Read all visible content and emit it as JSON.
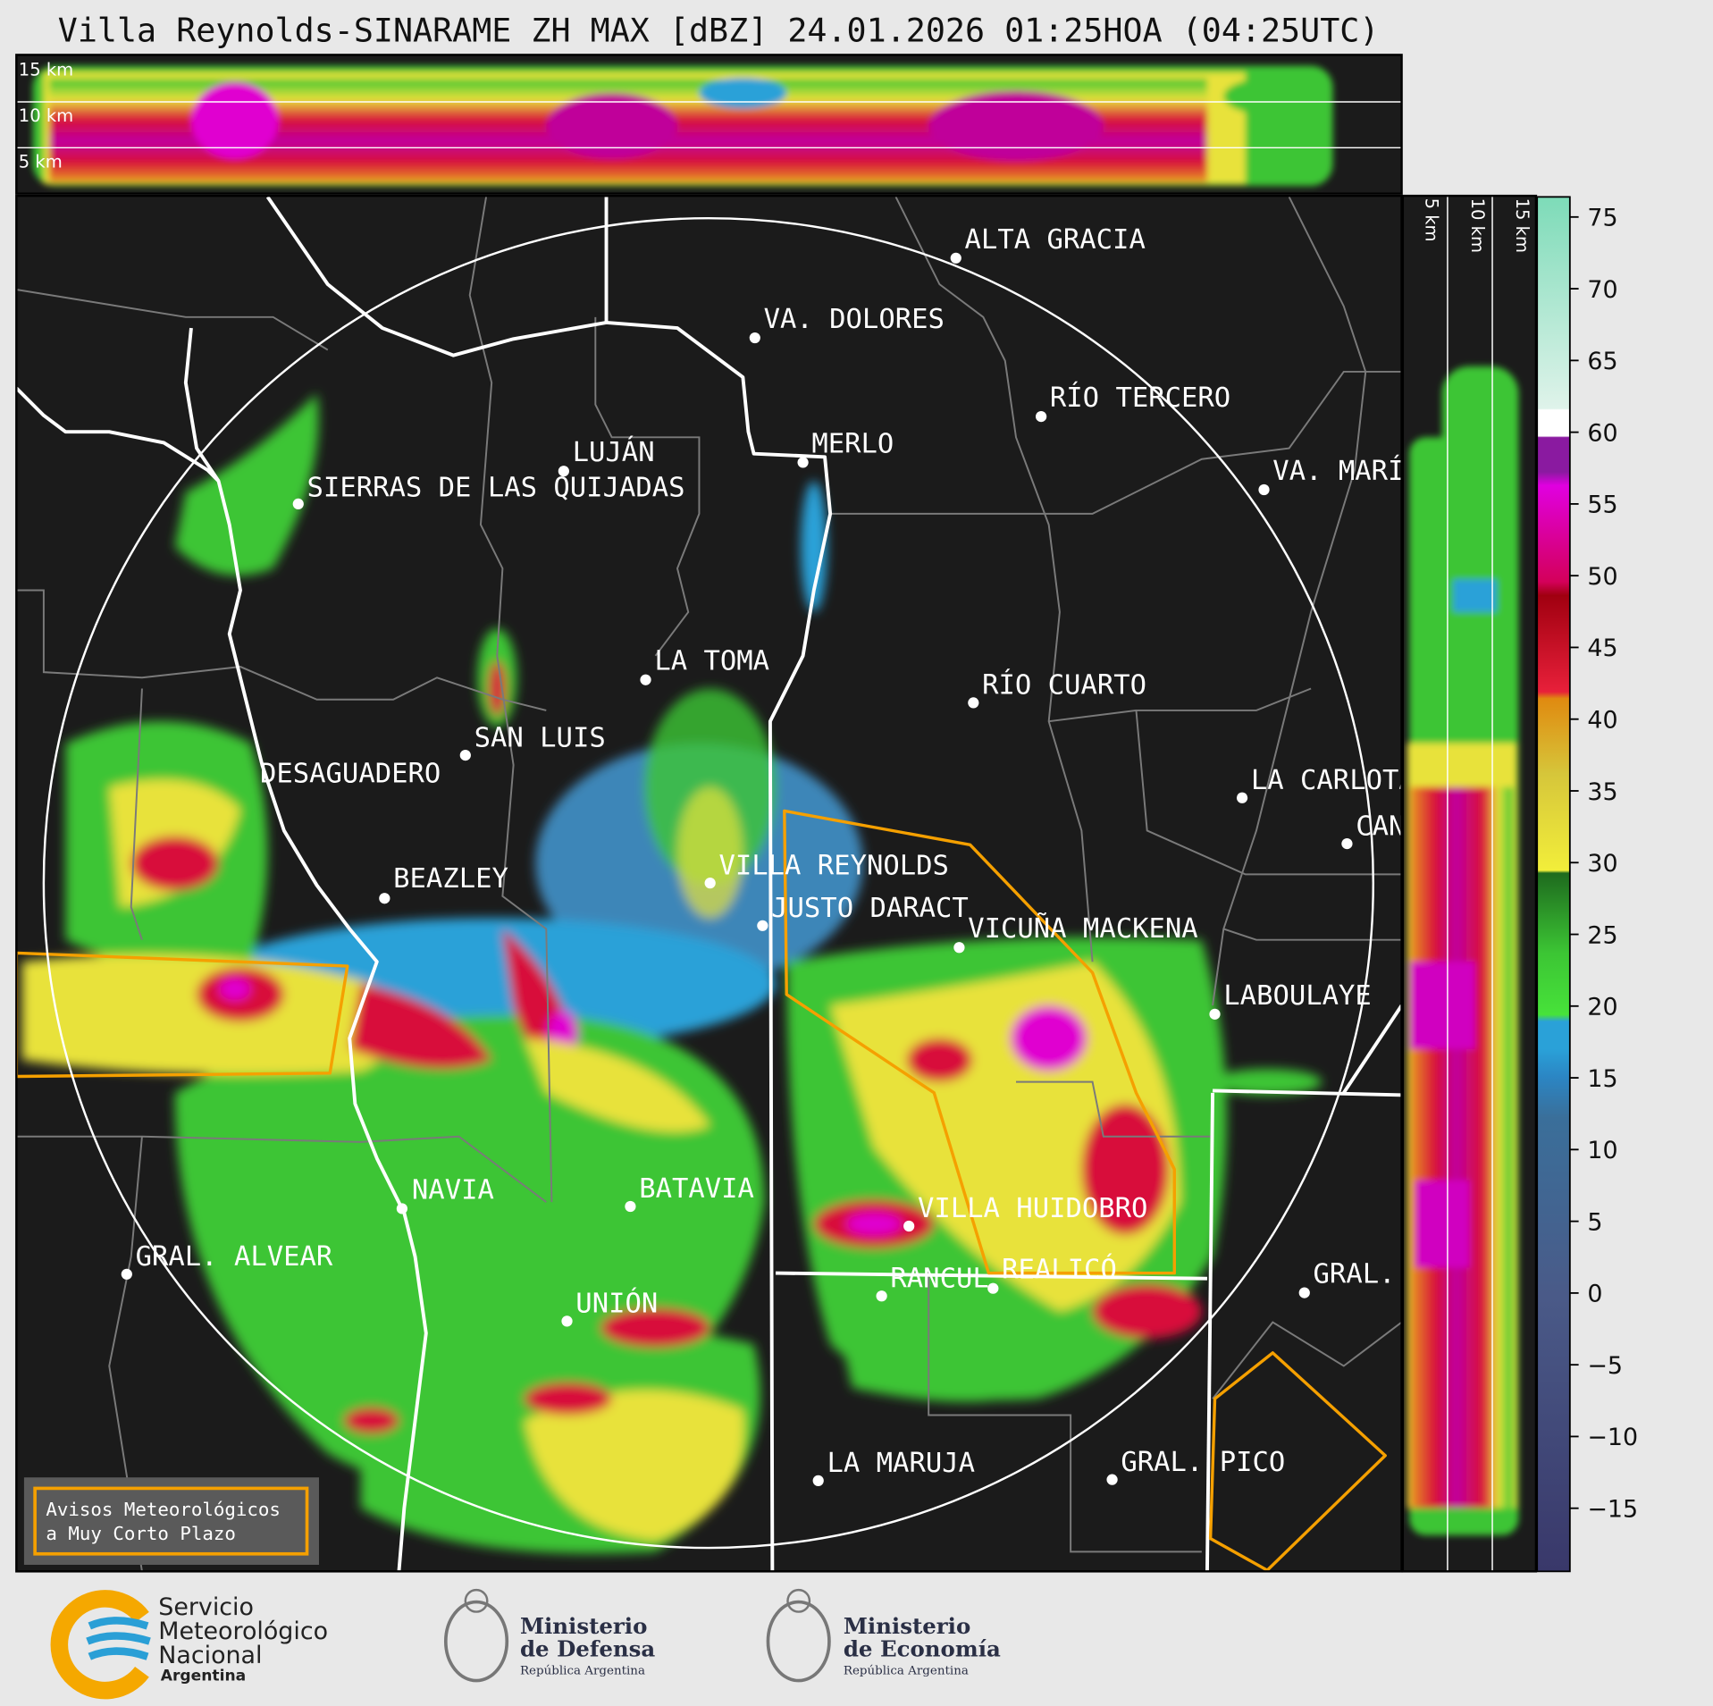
{
  "title": "Villa Reynolds-SINARAME ZH MAX [dBZ] 24.01.2026 01:25HOA (04:25UTC)",
  "height_labels": [
    "15 km",
    "10 km",
    "5 km"
  ],
  "side_height_labels": [
    "5 km",
    "10 km",
    "15 km"
  ],
  "cities": [
    "ALTA GRACIA",
    "VA. DOLORES",
    "RÍO TERCERO",
    "LUJÁN",
    "MERLO",
    "SIERRAS DE LAS QUIJADAS",
    "VA. MARÍ",
    "LA TOMA",
    "RÍO CUARTO",
    "SAN LUIS",
    "DESAGUADERO",
    "LA CARLOTA",
    "CAN",
    "VILLA REYNOLDS",
    "BEAZLEY",
    "JUSTO DARACT",
    "VICUÑA MACKENA",
    "LABOULAYE",
    "NAVIA",
    "BATAVIA",
    "VILLA HUIDOBRO",
    "GRAL. ALVEAR",
    "RANCUL",
    "REALICÓ",
    "GRAL.",
    "UNIÓN",
    "LA MARUJA",
    "GRAL. PICO"
  ],
  "colorbar": {
    "lim": [
      -19.4,
      76.4
    ],
    "ticks": [
      75,
      70,
      65,
      60,
      55,
      50,
      45,
      40,
      35,
      30,
      25,
      20,
      15,
      10,
      5,
      0,
      {
        "value": -5,
        "label": "−5"
      },
      {
        "value": -10,
        "label": "−10"
      },
      {
        "value": -15,
        "label": "−15"
      }
    ]
  },
  "legend": [
    "Avisos Meteorológicos",
    "a Muy Corto Plazo"
  ],
  "footer": {
    "smn": [
      "Servicio",
      "Meteorológico",
      "Nacional",
      "Argentina"
    ],
    "defensa": [
      "Ministerio",
      "de Defensa",
      "República Argentina"
    ],
    "economia": [
      "Ministerio",
      "de Economía",
      "República Argentina"
    ]
  }
}
